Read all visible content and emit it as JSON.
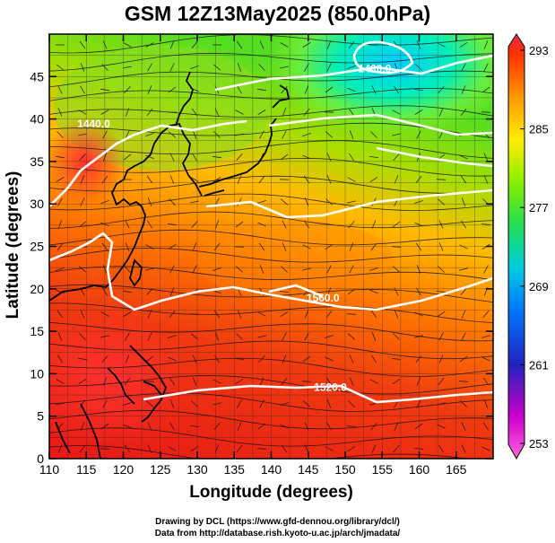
{
  "title": "GSM 12Z13May2025 (850.0hPa)",
  "x_axis": {
    "label": "Longitude (degrees)",
    "ticks": [
      "110",
      "115",
      "120",
      "125",
      "130",
      "135",
      "140",
      "145",
      "150",
      "155",
      "160",
      "165"
    ],
    "range": [
      110,
      170
    ]
  },
  "y_axis": {
    "label": "Latitude  (degrees)",
    "ticks": [
      "0",
      "5",
      "10",
      "15",
      "20",
      "25",
      "30",
      "35",
      "40",
      "45"
    ],
    "range": [
      0,
      50
    ]
  },
  "colorbar": {
    "ticks": [
      "293",
      "285",
      "277",
      "269",
      "261",
      "253"
    ],
    "range": [
      253,
      293
    ],
    "colors": [
      "#dd00dd",
      "#2222cc",
      "#00aaff",
      "#00ddbb",
      "#66dd00",
      "#ccee00",
      "#ffcc00",
      "#ff8800",
      "#ff3300",
      "#ee2222"
    ]
  },
  "contour_labels": [
    {
      "text": "1400.0",
      "lon": 154,
      "lat": 45.5
    },
    {
      "text": "1440.0",
      "lon": 116,
      "lat": 39
    },
    {
      "text": "1560.0",
      "lon": 147,
      "lat": 18.5
    },
    {
      "text": "1520.0",
      "lon": 148,
      "lat": 8
    }
  ],
  "credits": {
    "line1": "Drawing by DCL (https://www.gfd-dennou.org/library/dcl/)",
    "line2": "Data from http://database.rish.kyoto-u.ac.jp/arch/jmadata/"
  }
}
